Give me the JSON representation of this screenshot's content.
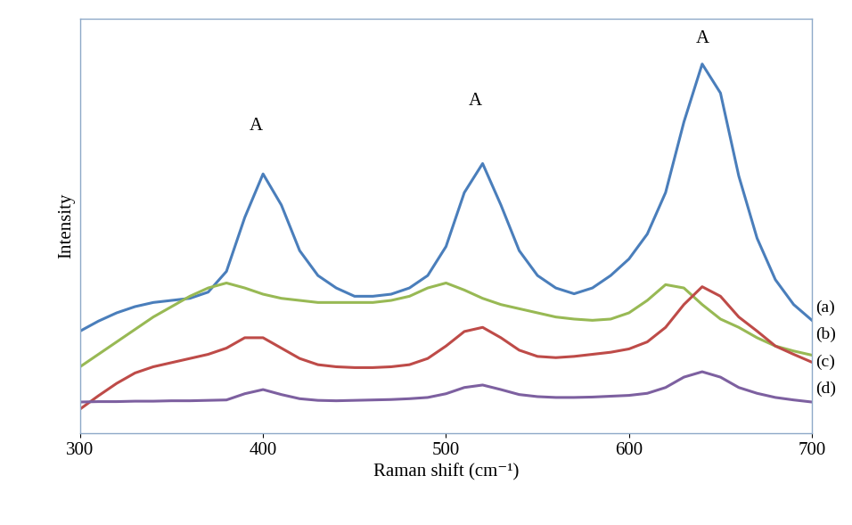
{
  "chart_data": {
    "type": "line",
    "x_label": "Raman shift (cm⁻¹)",
    "y_label": "Intensity",
    "xlim": [
      300,
      700
    ],
    "xticks": [
      300,
      400,
      500,
      600,
      700
    ],
    "ylim": [
      0,
      100
    ],
    "tick_labels": "x",
    "grid": false,
    "x": [
      300,
      310,
      320,
      330,
      340,
      350,
      360,
      370,
      380,
      390,
      400,
      410,
      420,
      430,
      440,
      450,
      460,
      470,
      480,
      490,
      500,
      510,
      520,
      530,
      540,
      550,
      560,
      570,
      580,
      590,
      600,
      610,
      620,
      630,
      640,
      650,
      660,
      670,
      680,
      690,
      700
    ],
    "series": [
      {
        "name": "(a)",
        "color": "#4a7ebb",
        "line_style": "solid",
        "values": [
          24.6,
          27,
          29,
          30.5,
          31.5,
          32,
          32.5,
          34,
          39,
          52,
          62.5,
          55,
          44,
          38,
          35,
          33,
          33,
          33.5,
          35,
          38,
          45,
          58,
          65,
          55,
          44,
          38,
          35,
          33.6,
          35,
          38,
          42,
          48,
          58,
          75,
          89,
          82,
          62,
          47,
          37,
          31,
          27.2
        ]
      },
      {
        "name": "(b)",
        "color": "#98b954",
        "line_style": "solid",
        "values": [
          16,
          19,
          22,
          25,
          28,
          30.5,
          33,
          35,
          36.2,
          35,
          33.5,
          32.5,
          32,
          31.5,
          31.5,
          31.5,
          31.5,
          32,
          33,
          35,
          36.2,
          34.5,
          32.5,
          31,
          30,
          29,
          28,
          27.5,
          27.2,
          27.5,
          29,
          32,
          35.8,
          35,
          31,
          27.5,
          25.5,
          23,
          21,
          19.8,
          18.8
        ]
      },
      {
        "name": "(c)",
        "color": "#be4b48",
        "line_style": "solid",
        "values": [
          5.8,
          9,
          12,
          14.5,
          16,
          17,
          18,
          19,
          20.5,
          23,
          23,
          20.5,
          18,
          16.5,
          16,
          15.8,
          15.8,
          16,
          16.5,
          18,
          21,
          24.5,
          25.5,
          23,
          20,
          18.5,
          18.2,
          18.5,
          19,
          19.5,
          20.3,
          22,
          25.5,
          31,
          35.3,
          33,
          28,
          24.6,
          21,
          19,
          17.1
        ]
      },
      {
        "name": "(d)",
        "color": "#7d60a0",
        "line_style": "solid",
        "values": [
          7.5,
          7.6,
          7.6,
          7.7,
          7.7,
          7.8,
          7.8,
          7.9,
          8,
          9.5,
          10.5,
          9.3,
          8.3,
          7.9,
          7.8,
          7.9,
          8,
          8.1,
          8.3,
          8.6,
          9.5,
          11,
          11.6,
          10.5,
          9.3,
          8.8,
          8.6,
          8.6,
          8.7,
          8.9,
          9.1,
          9.6,
          11,
          13.5,
          14.8,
          13.5,
          11,
          9.6,
          8.6,
          8,
          7.5
        ]
      }
    ],
    "annotations": [
      {
        "text": "A",
        "x": 396,
        "y": 74
      },
      {
        "text": "A",
        "x": 516,
        "y": 80
      },
      {
        "text": "A",
        "x": 640,
        "y": 95
      }
    ]
  }
}
